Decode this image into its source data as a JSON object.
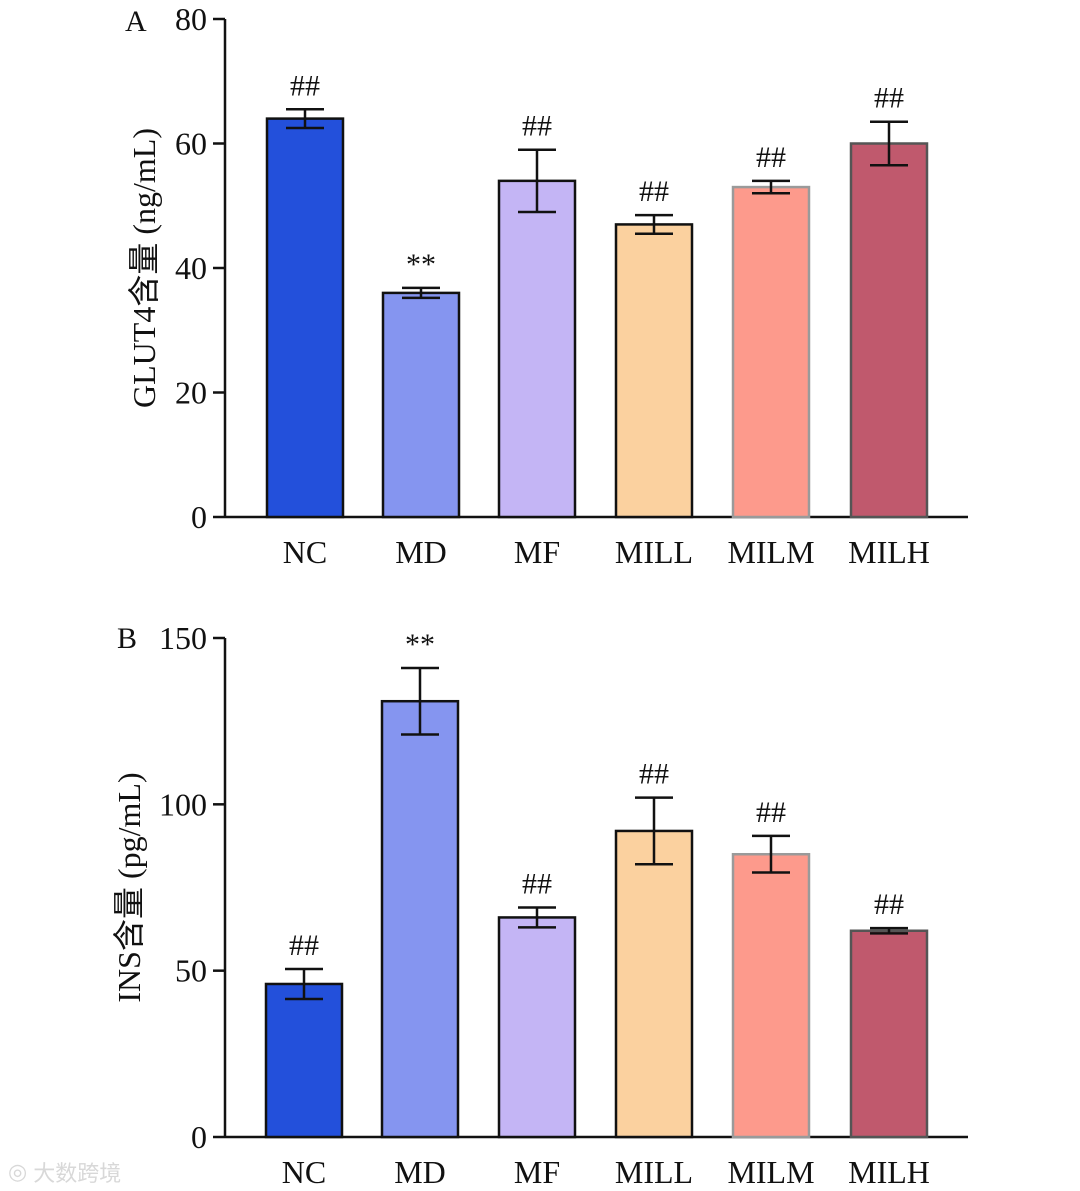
{
  "chart_data": [
    {
      "panel": "A",
      "type": "bar",
      "ylabel": "GLUT4含量 (ng/mL)",
      "ylim": [
        0,
        80
      ],
      "yticks": [
        0,
        20,
        40,
        60,
        80
      ],
      "categories": [
        "NC",
        "MD",
        "MF",
        "MILL",
        "MILM",
        "MILH"
      ],
      "values": [
        64,
        36,
        54,
        47,
        53,
        60
      ],
      "errors": [
        1.5,
        0.8,
        5,
        1.5,
        1,
        3.5
      ],
      "marks": [
        "##",
        "**",
        "##",
        "##",
        "##",
        "##"
      ],
      "colors": [
        "#2350db",
        "#8595f0",
        "#c4b5f5",
        "#fbd19f",
        "#fd9a8c",
        "#c0596d"
      ],
      "edge_colors": [
        "#111111",
        "#111111",
        "#111111",
        "#111111",
        "#9a9a9a",
        "#555555"
      ]
    },
    {
      "panel": "B",
      "type": "bar",
      "ylabel": "INS含量 (pg/mL)",
      "ylim": [
        0,
        150
      ],
      "yticks": [
        0,
        50,
        100,
        150
      ],
      "categories": [
        "NC",
        "MD",
        "MF",
        "MILL",
        "MILM",
        "MILH"
      ],
      "values": [
        46,
        131,
        66,
        92,
        85,
        62
      ],
      "errors": [
        4.5,
        10,
        3,
        10,
        5.5,
        0.8
      ],
      "marks": [
        "##",
        "**",
        "##",
        "##",
        "##",
        "##"
      ],
      "colors": [
        "#2350db",
        "#8595f0",
        "#c4b5f5",
        "#fbd19f",
        "#fd9a8c",
        "#c0596d"
      ],
      "edge_colors": [
        "#111111",
        "#111111",
        "#111111",
        "#111111",
        "#9a9a9a",
        "#555555"
      ]
    }
  ],
  "watermark": "大数跨境",
  "watermark_icon": "weibo-like-logo"
}
